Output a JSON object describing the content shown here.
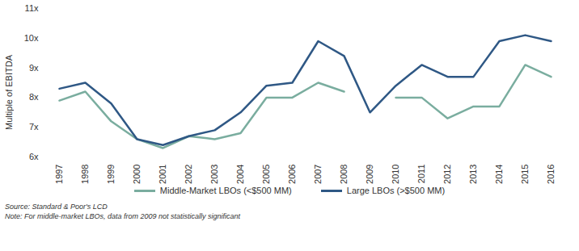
{
  "chart_data": {
    "type": "line",
    "y_label": "Multiple of EBITDA",
    "categories": [
      "1997",
      "1998",
      "1999",
      "2000",
      "2001",
      "2002",
      "2003",
      "2004",
      "2005",
      "2006",
      "2007",
      "2008",
      "2009",
      "2010",
      "2011",
      "2012",
      "2013",
      "2014",
      "2015",
      "2016"
    ],
    "series": [
      {
        "name": "Middle-Market LBOs (<$500 MM)",
        "color": "#7aad9f",
        "values": [
          7.9,
          8.2,
          7.2,
          6.6,
          6.3,
          6.7,
          6.6,
          6.8,
          8.0,
          8.0,
          8.5,
          8.2,
          null,
          8.0,
          8.0,
          7.3,
          7.7,
          7.7,
          9.1,
          8.7
        ]
      },
      {
        "name": "Large LBOs (>$500 MM)",
        "color": "#2f5885",
        "values": [
          8.3,
          8.5,
          7.8,
          6.6,
          6.4,
          6.7,
          6.9,
          7.5,
          8.4,
          8.5,
          9.9,
          9.4,
          7.5,
          8.4,
          9.1,
          8.7,
          8.7,
          9.9,
          10.1,
          9.9
        ]
      }
    ],
    "ylim": [
      6,
      11
    ],
    "yticks": [
      {
        "value": 6,
        "label": "6x"
      },
      {
        "value": 7,
        "label": "7x"
      },
      {
        "value": 8,
        "label": "8x"
      },
      {
        "value": 9,
        "label": "9x"
      },
      {
        "value": 10,
        "label": "10x"
      },
      {
        "value": 11,
        "label": "11x"
      }
    ],
    "grid": false,
    "legend": "bottom",
    "source": "Source: Standard & Poor's LCD",
    "note": "Note: For middle-market LBOs, data from 2009 not statistically significant"
  }
}
